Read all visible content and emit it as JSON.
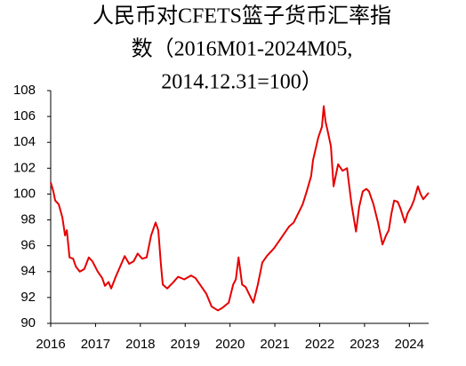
{
  "chart_data": {
    "type": "line",
    "title": [
      "人民币对CFETS篮子货币汇率指",
      "数（2016M01-2024M05,",
      "2014.12.31=100）"
    ],
    "x": [
      2016.0,
      2016.06,
      2016.1,
      2016.18,
      2016.26,
      2016.32,
      2016.36,
      2016.42,
      2016.5,
      2016.56,
      2016.65,
      2016.75,
      2016.85,
      2016.93,
      2017.05,
      2017.15,
      2017.21,
      2017.29,
      2017.35,
      2017.45,
      2017.55,
      2017.65,
      2017.75,
      2017.85,
      2017.94,
      2018.04,
      2018.14,
      2018.24,
      2018.34,
      2018.4,
      2018.46,
      2018.5,
      2018.6,
      2018.74,
      2018.84,
      2018.98,
      2019.13,
      2019.23,
      2019.33,
      2019.47,
      2019.59,
      2019.73,
      2019.83,
      2019.97,
      2020.07,
      2020.13,
      2020.19,
      2020.27,
      2020.35,
      2020.42,
      2020.52,
      2020.62,
      2020.72,
      2020.82,
      2020.98,
      2021.12,
      2021.22,
      2021.32,
      2021.42,
      2021.52,
      2021.62,
      2021.71,
      2021.81,
      2021.85,
      2021.97,
      2022.05,
      2022.09,
      2022.13,
      2022.17,
      2022.25,
      2022.31,
      2022.41,
      2022.51,
      2022.61,
      2022.71,
      2022.81,
      2022.88,
      2022.96,
      2023.04,
      2023.1,
      2023.2,
      2023.3,
      2023.4,
      2023.48,
      2023.54,
      2023.6,
      2023.66,
      2023.74,
      2023.8,
      2023.9,
      2023.96,
      2024.04,
      2024.1,
      2024.19,
      2024.25,
      2024.31,
      2024.43
    ],
    "series": [
      {
        "name": "CFETS",
        "color": "#e60000",
        "values": [
          100.9,
          100.2,
          99.5,
          99.2,
          98.2,
          96.8,
          97.2,
          95.1,
          95.0,
          94.4,
          94.0,
          94.2,
          95.1,
          94.8,
          94.0,
          93.5,
          92.9,
          93.2,
          92.7,
          93.6,
          94.4,
          95.2,
          94.6,
          94.8,
          95.4,
          95.0,
          95.1,
          96.8,
          97.8,
          97.2,
          94.5,
          93.0,
          92.7,
          93.2,
          93.6,
          93.4,
          93.7,
          93.5,
          93.0,
          92.3,
          91.3,
          91.0,
          91.2,
          91.6,
          93.0,
          93.4,
          95.1,
          93.0,
          92.8,
          92.3,
          91.6,
          93.0,
          94.7,
          95.2,
          95.8,
          96.5,
          97.0,
          97.5,
          97.8,
          98.5,
          99.2,
          100.2,
          101.4,
          102.6,
          104.4,
          105.2,
          106.8,
          105.6,
          105.0,
          103.7,
          100.6,
          102.3,
          101.8,
          102.0,
          99.2,
          97.1,
          99.0,
          100.2,
          100.4,
          100.2,
          99.2,
          97.8,
          96.1,
          96.8,
          97.2,
          98.5,
          99.5,
          99.4,
          98.9,
          97.8,
          98.5,
          99.0,
          99.5,
          100.6,
          100.0,
          99.6,
          100.1
        ]
      }
    ],
    "xlim": [
      2016,
      2024.43
    ],
    "xticks": [
      2016,
      2017,
      2018,
      2019,
      2020,
      2021,
      2022,
      2023,
      2024
    ],
    "ylim": [
      90,
      108
    ],
    "yticks": [
      90,
      92,
      94,
      96,
      98,
      100,
      102,
      104,
      106,
      108
    ]
  }
}
